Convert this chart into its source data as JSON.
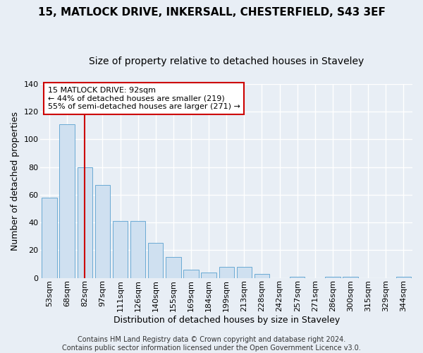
{
  "title1": "15, MATLOCK DRIVE, INKERSALL, CHESTERFIELD, S43 3EF",
  "title2": "Size of property relative to detached houses in Staveley",
  "xlabel": "Distribution of detached houses by size in Staveley",
  "ylabel": "Number of detached properties",
  "categories": [
    "53sqm",
    "68sqm",
    "82sqm",
    "97sqm",
    "111sqm",
    "126sqm",
    "140sqm",
    "155sqm",
    "169sqm",
    "184sqm",
    "199sqm",
    "213sqm",
    "228sqm",
    "242sqm",
    "257sqm",
    "271sqm",
    "286sqm",
    "300sqm",
    "315sqm",
    "329sqm",
    "344sqm"
  ],
  "values": [
    58,
    111,
    80,
    67,
    41,
    41,
    25,
    15,
    6,
    4,
    8,
    8,
    3,
    0,
    1,
    0,
    1,
    1,
    0,
    0,
    1
  ],
  "bar_color": "#cfe0f0",
  "bar_edge_color": "#6aaad4",
  "vline_x": 2.0,
  "vline_color": "#cc0000",
  "annotation_line1": "15 MATLOCK DRIVE: 92sqm",
  "annotation_line2": "← 44% of detached houses are smaller (219)",
  "annotation_line3": "55% of semi-detached houses are larger (271) →",
  "ylim": [
    0,
    140
  ],
  "yticks": [
    0,
    20,
    40,
    60,
    80,
    100,
    120,
    140
  ],
  "fig_bg_color": "#e8eef5",
  "plot_bg_color": "#e8eef5",
  "grid_color": "#ffffff",
  "footer_text": "Contains HM Land Registry data © Crown copyright and database right 2024.\nContains public sector information licensed under the Open Government Licence v3.0.",
  "title1_fontsize": 11,
  "title2_fontsize": 10,
  "xlabel_fontsize": 9,
  "ylabel_fontsize": 9,
  "tick_fontsize": 8,
  "annotation_fontsize": 8,
  "footer_fontsize": 7
}
